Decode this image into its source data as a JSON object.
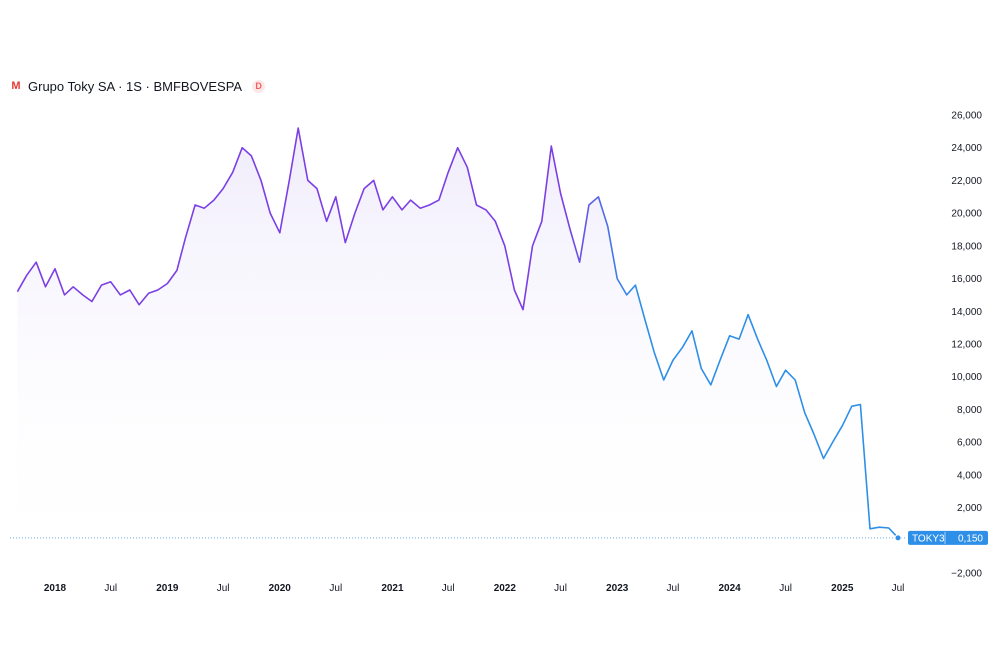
{
  "header": {
    "logo_icon": "M",
    "title": "Grupo Toky SA · 1S · BMFBOVESPA",
    "delayed_badge": "D"
  },
  "price_label": {
    "ticker": "TOKY3",
    "value": "0,150"
  },
  "colors": {
    "line_purple": "#7B3FE4",
    "line_blue": "#2E8FE8",
    "badge_bg": "#2E8FE8",
    "area_fill": "#EEEAFB"
  },
  "chart_data": {
    "type": "line",
    "title": "Grupo Toky SA · 1S · BMFBOVESPA",
    "xlabel": "",
    "ylabel": "",
    "ylim": [
      -2000,
      26000
    ],
    "y_ticks": [
      -2000,
      2000,
      4000,
      6000,
      8000,
      10000,
      12000,
      14000,
      16000,
      18000,
      20000,
      22000,
      24000,
      26000
    ],
    "y_tick_labels": [
      "−2,000",
      "2,000",
      "4,000",
      "6,000",
      "8,000",
      "10,000",
      "12,000",
      "14,000",
      "16,000",
      "18,000",
      "20,000",
      "22,000",
      "24,000",
      "26,000"
    ],
    "x_ticks": [
      {
        "label": "2018",
        "date": "2018-01-01",
        "major": true
      },
      {
        "label": "Jul",
        "date": "2018-07-01",
        "major": false
      },
      {
        "label": "2019",
        "date": "2019-01-01",
        "major": true
      },
      {
        "label": "Jul",
        "date": "2019-07-01",
        "major": false
      },
      {
        "label": "2020",
        "date": "2020-01-01",
        "major": true
      },
      {
        "label": "Jul",
        "date": "2020-07-01",
        "major": false
      },
      {
        "label": "2021",
        "date": "2021-01-01",
        "major": true
      },
      {
        "label": "Jul",
        "date": "2021-07-01",
        "major": false
      },
      {
        "label": "2022",
        "date": "2022-01-01",
        "major": true
      },
      {
        "label": "Jul",
        "date": "2022-07-01",
        "major": false
      },
      {
        "label": "2023",
        "date": "2023-01-01",
        "major": true
      },
      {
        "label": "Jul",
        "date": "2023-07-01",
        "major": false
      },
      {
        "label": "2024",
        "date": "2024-01-01",
        "major": true
      },
      {
        "label": "Jul",
        "date": "2024-07-01",
        "major": false
      },
      {
        "label": "2025",
        "date": "2025-01-01",
        "major": true
      },
      {
        "label": "Jul",
        "date": "2025-07-01",
        "major": false
      }
    ],
    "last_value": 150,
    "series": [
      {
        "name": "TOKY3",
        "x": [
          "2017-09-01",
          "2017-10-01",
          "2017-11-01",
          "2017-12-01",
          "2018-01-01",
          "2018-02-01",
          "2018-03-01",
          "2018-04-01",
          "2018-05-01",
          "2018-06-01",
          "2018-07-01",
          "2018-08-01",
          "2018-09-01",
          "2018-10-01",
          "2018-11-01",
          "2018-12-01",
          "2019-01-01",
          "2019-02-01",
          "2019-03-01",
          "2019-04-01",
          "2019-05-01",
          "2019-06-01",
          "2019-07-01",
          "2019-08-01",
          "2019-09-01",
          "2019-10-01",
          "2019-11-01",
          "2019-12-01",
          "2020-01-01",
          "2020-02-01",
          "2020-03-01",
          "2020-04-01",
          "2020-05-01",
          "2020-06-01",
          "2020-07-01",
          "2020-08-01",
          "2020-09-01",
          "2020-10-01",
          "2020-11-01",
          "2020-12-01",
          "2021-01-01",
          "2021-02-01",
          "2021-03-01",
          "2021-04-01",
          "2021-05-01",
          "2021-06-01",
          "2021-07-01",
          "2021-08-01",
          "2021-09-01",
          "2021-10-01",
          "2021-11-01",
          "2021-12-01",
          "2022-01-01",
          "2022-02-01",
          "2022-03-01",
          "2022-04-01",
          "2022-05-01",
          "2022-06-01",
          "2022-07-01",
          "2022-08-01",
          "2022-09-01",
          "2022-10-01",
          "2022-11-01",
          "2022-12-01",
          "2023-01-01",
          "2023-02-01",
          "2023-03-01",
          "2023-04-01",
          "2023-05-01",
          "2023-06-01",
          "2023-07-01",
          "2023-08-01",
          "2023-09-01",
          "2023-10-01",
          "2023-11-01",
          "2023-12-01",
          "2024-01-01",
          "2024-02-01",
          "2024-03-01",
          "2024-04-01",
          "2024-05-01",
          "2024-06-01",
          "2024-07-01",
          "2024-08-01",
          "2024-09-01",
          "2024-10-01",
          "2024-11-01",
          "2024-12-01",
          "2025-01-01",
          "2025-02-01",
          "2025-03-01",
          "2025-04-01",
          "2025-05-01",
          "2025-06-01",
          "2025-07-01"
        ],
        "y": [
          15200,
          16200,
          17000,
          15500,
          16600,
          15000,
          15500,
          15000,
          14600,
          15600,
          15800,
          15000,
          15300,
          14400,
          15100,
          15300,
          15700,
          16500,
          18500,
          20500,
          20300,
          20800,
          21500,
          22500,
          24000,
          23500,
          22000,
          20000,
          18800,
          22000,
          25200,
          22000,
          21500,
          19500,
          21000,
          18200,
          20000,
          21500,
          22000,
          20200,
          21000,
          20200,
          20800,
          20300,
          20500,
          20800,
          22500,
          24000,
          22800,
          20500,
          20200,
          19500,
          18000,
          15300,
          14100,
          18000,
          19500,
          24100,
          21200,
          19000,
          17000,
          20500,
          21000,
          19200,
          16000,
          15000,
          15600,
          13500,
          11500,
          9800,
          11000,
          11800,
          12800,
          10500,
          9500,
          11000,
          12500,
          12300,
          13800,
          12300,
          11000,
          9400,
          10400,
          9800,
          7800,
          6500,
          5000,
          6000,
          7000,
          8200,
          8300,
          700,
          800,
          750,
          150
        ]
      }
    ]
  }
}
